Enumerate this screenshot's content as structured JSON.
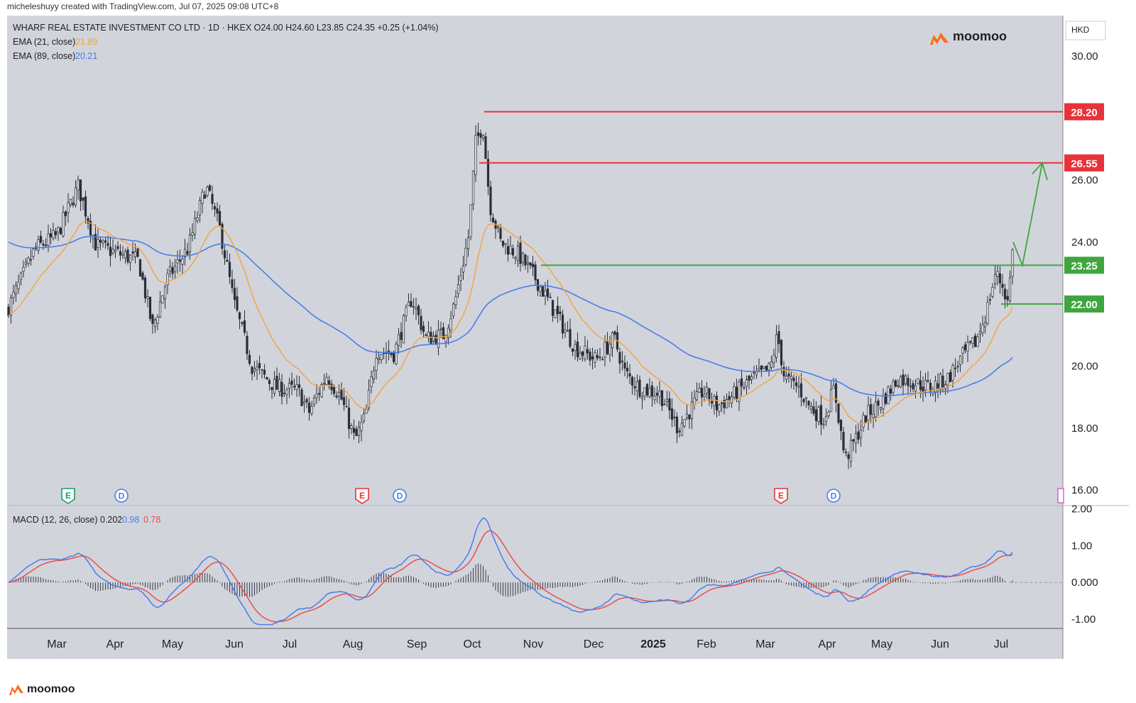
{
  "credit": "micheleshuyy created with TradingView.com, Jul 07, 2025 09:08 UTC+8",
  "brand": "moomoo",
  "colors": {
    "background": "#d2d4dc",
    "up": "#2a2e39",
    "ema21": "#f2a43a",
    "ema89": "#4a7ee8",
    "resistance": "#e8323a",
    "support": "#3fa63f",
    "macd": "#4a7ee8",
    "signal": "#e8504a"
  },
  "chart_data": [
    {
      "type": "candlestick",
      "title": "WHARF REAL ESTATE INVESTMENT CO LTD · 1D · HKEX",
      "ohlc": {
        "O": "O24.00",
        "H": "H24.60",
        "L": "L23.85",
        "C": "C24.35",
        "change": "+0.25 (+1.04%)"
      },
      "currency": "HKD",
      "indicators": [
        {
          "label": "EMA (21, close)",
          "value": "21.89"
        },
        {
          "label": "EMA (89, close)",
          "value": "20.21"
        }
      ],
      "x_ticks": [
        "Mar",
        "Apr",
        "May",
        "Jun",
        "Jul",
        "Aug",
        "Sep",
        "Oct",
        "Nov",
        "Dec",
        "2025",
        "Feb",
        "Mar",
        "Apr",
        "May",
        "Jun",
        "Jul"
      ],
      "y_ticks": [
        "30.00",
        "26.00",
        "24.00",
        "20.00",
        "18.00",
        "16.00"
      ],
      "ylim": [
        15.5,
        31.3
      ],
      "series_close_monthly": [
        {
          "month": "Feb 2024",
          "close": 22.0
        },
        {
          "month": "Mar 2024",
          "close": 25.3
        },
        {
          "month": "Apr 2024",
          "close": 23.5
        },
        {
          "month": "May 2024",
          "close": 25.5
        },
        {
          "month": "Jun 2024",
          "close": 20.5
        },
        {
          "month": "Jul 2024",
          "close": 19.2
        },
        {
          "month": "Aug 2024",
          "close": 18.4
        },
        {
          "month": "Sep 2024",
          "close": 21.5
        },
        {
          "month": "Oct 2024",
          "close": 28.0
        },
        {
          "month": "Nov 2024",
          "close": 22.0
        },
        {
          "month": "Dec 2024",
          "close": 20.0
        },
        {
          "month": "Jan 2025",
          "close": 18.7
        },
        {
          "month": "Feb 2025",
          "close": 19.4
        },
        {
          "month": "Mar 2025",
          "close": 19.1
        },
        {
          "month": "Apr 2025",
          "close": 17.8
        },
        {
          "month": "May 2025",
          "close": 19.6
        },
        {
          "month": "Jun 2025",
          "close": 21.2
        },
        {
          "month": "Jul 2025",
          "close": 24.35
        }
      ],
      "levels": [
        {
          "label": "28.20",
          "value": 28.2,
          "kind": "resistance"
        },
        {
          "label": "26.55",
          "value": 26.55,
          "kind": "resistance"
        },
        {
          "label": "23.25",
          "value": 23.25,
          "kind": "support"
        },
        {
          "label": "22.00",
          "value": 22.0,
          "kind": "support"
        }
      ],
      "event_markers": [
        {
          "letter": "E",
          "kind": "earnings-green",
          "date": "Mar 2024"
        },
        {
          "letter": "D",
          "kind": "dividend",
          "date": "Apr 2024"
        },
        {
          "letter": "E",
          "kind": "earnings-red",
          "date": "Aug 2024"
        },
        {
          "letter": "D",
          "kind": "dividend",
          "date": "Aug 2024"
        },
        {
          "letter": "E",
          "kind": "earnings-red",
          "date": "Mar 2025"
        },
        {
          "letter": "D",
          "kind": "dividend",
          "date": "Apr 2025"
        }
      ]
    },
    {
      "type": "line",
      "title": "MACD (12, 26, close)",
      "values_text": {
        "hist": "0.202",
        "macd": "0.98",
        "signal": "0.78"
      },
      "y_ticks": [
        "2.00",
        "1.00",
        "0.000",
        "-1.00"
      ],
      "ylim": [
        -1.25,
        2.05
      ]
    }
  ]
}
